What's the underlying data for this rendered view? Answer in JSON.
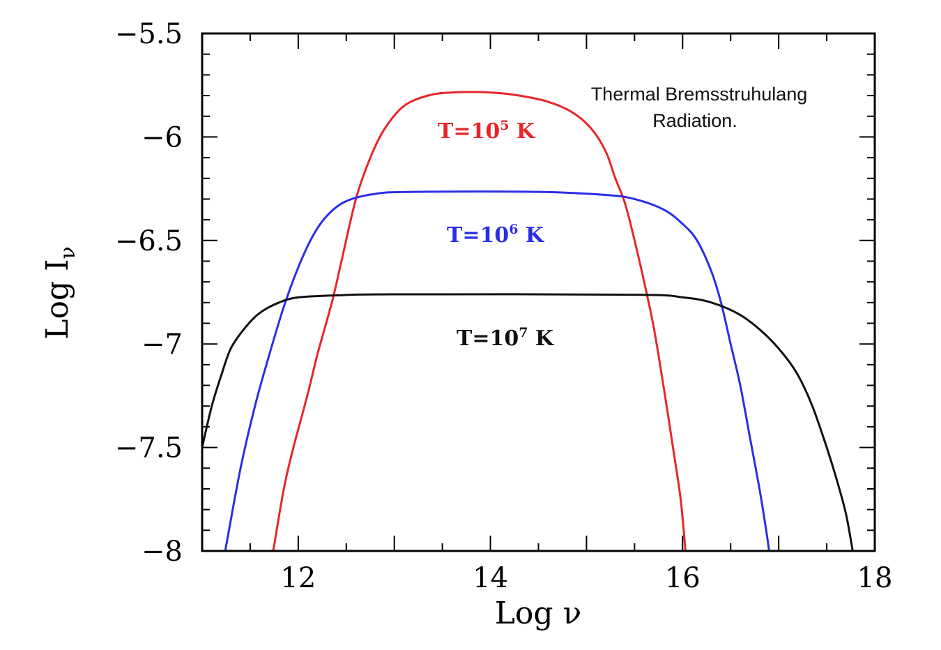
{
  "chart_data": {
    "type": "line",
    "xlabel": "Log ν",
    "ylabel_main": "Log I",
    "ylabel_sub": "ν",
    "xlim": [
      11,
      18
    ],
    "ylim": [
      -8,
      -5.5
    ],
    "x_ticks": [
      12,
      14,
      16,
      18
    ],
    "x_tick_labels": [
      "12",
      "14",
      "16",
      "18"
    ],
    "y_ticks": [
      -8,
      -7.5,
      -7,
      -6.5,
      -6,
      -5.5
    ],
    "y_tick_labels": [
      "−8",
      "−7.5",
      "−7",
      "−6.5",
      "−6",
      "−5.5"
    ],
    "annotation_lines": [
      "Thermal Bremsstruhulang",
      "Radiation."
    ],
    "series": [
      {
        "label_prefix": "T=10",
        "label_exp": "5",
        "label_suffix": " K",
        "color": "#e8262a",
        "points": [
          [
            11.74,
            -8
          ],
          [
            11.85,
            -7.7
          ],
          [
            11.95,
            -7.5
          ],
          [
            12.1,
            -7.24
          ],
          [
            12.2,
            -7.05
          ],
          [
            12.35,
            -6.8
          ],
          [
            12.45,
            -6.6
          ],
          [
            12.6,
            -6.3
          ],
          [
            12.75,
            -6.1
          ],
          [
            12.9,
            -5.96
          ],
          [
            13.1,
            -5.85
          ],
          [
            13.35,
            -5.8
          ],
          [
            13.6,
            -5.785
          ],
          [
            14.0,
            -5.785
          ],
          [
            14.3,
            -5.8
          ],
          [
            14.6,
            -5.83
          ],
          [
            14.85,
            -5.88
          ],
          [
            15.05,
            -5.96
          ],
          [
            15.2,
            -6.07
          ],
          [
            15.3,
            -6.2
          ],
          [
            15.4,
            -6.32
          ],
          [
            15.5,
            -6.5
          ],
          [
            15.6,
            -6.7
          ],
          [
            15.7,
            -6.92
          ],
          [
            15.8,
            -7.2
          ],
          [
            15.9,
            -7.5
          ],
          [
            15.98,
            -7.75
          ],
          [
            16.03,
            -8
          ]
        ]
      },
      {
        "label_prefix": "T=10",
        "label_exp": "6",
        "label_suffix": " K",
        "color": "#2b2ee6",
        "points": [
          [
            11.24,
            -8
          ],
          [
            11.4,
            -7.6
          ],
          [
            11.55,
            -7.3
          ],
          [
            11.7,
            -7.05
          ],
          [
            11.85,
            -6.82
          ],
          [
            12.0,
            -6.63
          ],
          [
            12.15,
            -6.48
          ],
          [
            12.3,
            -6.38
          ],
          [
            12.5,
            -6.31
          ],
          [
            12.8,
            -6.275
          ],
          [
            13.2,
            -6.265
          ],
          [
            14.5,
            -6.265
          ],
          [
            15.2,
            -6.28
          ],
          [
            15.5,
            -6.3
          ],
          [
            15.8,
            -6.35
          ],
          [
            16.0,
            -6.42
          ],
          [
            16.15,
            -6.5
          ],
          [
            16.3,
            -6.65
          ],
          [
            16.4,
            -6.8
          ],
          [
            16.5,
            -7.0
          ],
          [
            16.6,
            -7.2
          ],
          [
            16.7,
            -7.45
          ],
          [
            16.8,
            -7.7
          ],
          [
            16.87,
            -7.9
          ],
          [
            16.9,
            -8
          ]
        ]
      },
      {
        "label_prefix": "T=10",
        "label_exp": "7",
        "label_suffix": " K",
        "color": "#111111",
        "points": [
          [
            11.0,
            -7.5
          ],
          [
            11.1,
            -7.3
          ],
          [
            11.2,
            -7.15
          ],
          [
            11.3,
            -7.02
          ],
          [
            11.45,
            -6.92
          ],
          [
            11.6,
            -6.85
          ],
          [
            11.8,
            -6.8
          ],
          [
            12.0,
            -6.775
          ],
          [
            12.4,
            -6.765
          ],
          [
            13.0,
            -6.76
          ],
          [
            15.5,
            -6.762
          ],
          [
            16.0,
            -6.775
          ],
          [
            16.3,
            -6.8
          ],
          [
            16.6,
            -6.86
          ],
          [
            16.85,
            -6.95
          ],
          [
            17.05,
            -7.05
          ],
          [
            17.2,
            -7.15
          ],
          [
            17.35,
            -7.3
          ],
          [
            17.5,
            -7.5
          ],
          [
            17.6,
            -7.65
          ],
          [
            17.7,
            -7.82
          ],
          [
            17.77,
            -8
          ]
        ]
      }
    ]
  }
}
